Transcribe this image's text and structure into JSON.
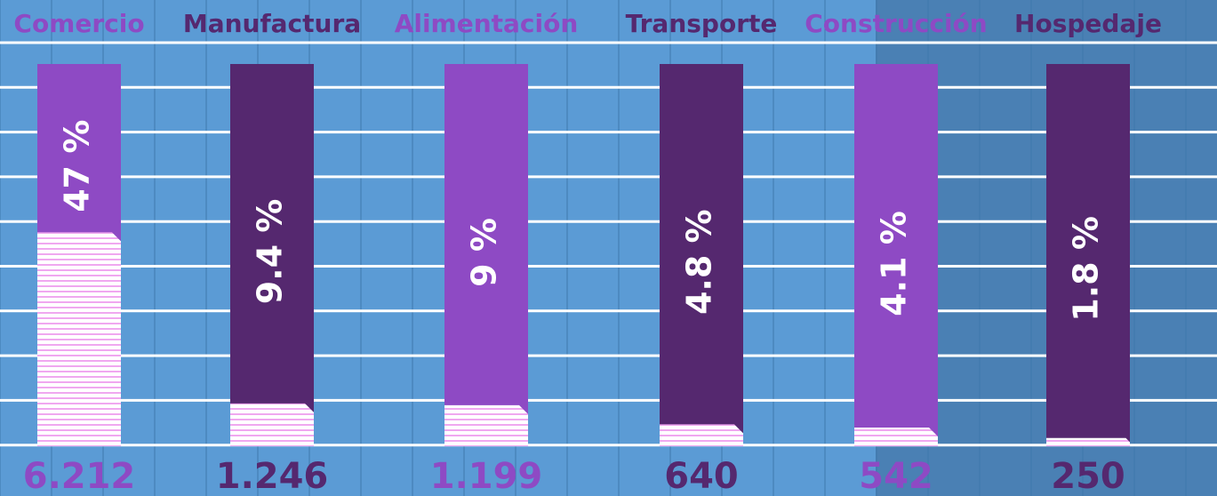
{
  "chart_data": {
    "type": "bar",
    "categories": [
      "Comercio",
      "Manufactura",
      "Alimentación",
      "Transporte",
      "Construcción",
      "Hospedaje"
    ],
    "values": [
      47,
      9.4,
      9,
      4.8,
      4.1,
      1.8
    ],
    "value_labels": [
      "47 %",
      "9.4 %",
      "9 %",
      "4.8 %",
      "4.1 %",
      "1.8 %"
    ],
    "count_labels": [
      "6.212",
      "1.246",
      "1.199",
      "640",
      "542",
      "250"
    ],
    "colors": [
      "#8e4ac4",
      "#55286f"
    ],
    "ylim": [
      0,
      84
    ]
  }
}
